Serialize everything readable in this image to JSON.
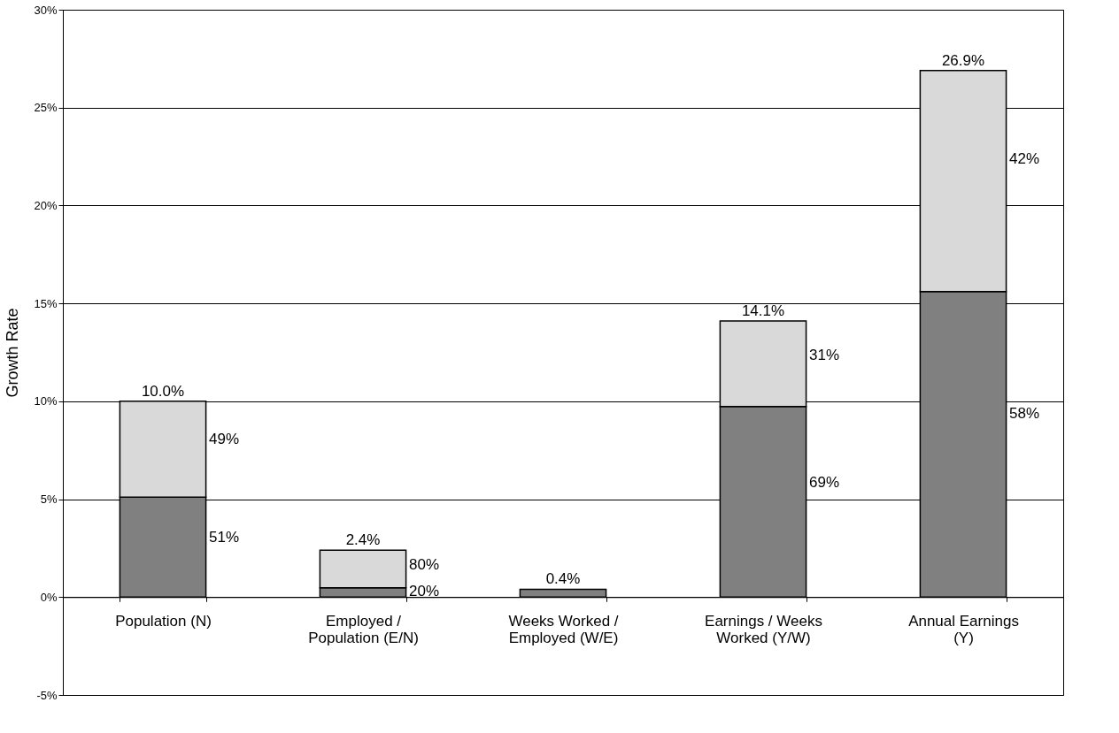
{
  "chart_data": {
    "type": "bar",
    "stacked": true,
    "ylabel": "Growth Rate",
    "categories": [
      "Population (N)",
      "Employed / Population (E/N)",
      "Weeks Worked / Employed (W/E)",
      "Earnings / Weeks Worked (Y/W)",
      "Annual Earnings (Y)"
    ],
    "series": [
      {
        "color": "#808080",
        "values": [
          5.1,
          0.48,
          0.4,
          9.73,
          15.6
        ]
      },
      {
        "color": "#d9d9d9",
        "values": [
          4.9,
          1.92,
          null,
          4.37,
          11.3
        ]
      }
    ],
    "annotations": [
      "51%",
      "49%",
      "20%",
      "80%",
      "69%",
      "31%",
      "58%",
      "42%"
    ],
    "totals": [
      "10.0%",
      "2.4%",
      "0.4%",
      "14.1%",
      "26.9%"
    ],
    "ylim": [
      -5,
      30
    ],
    "yticks": [
      {
        "value": -5,
        "label": "-5%"
      },
      {
        "value": 0,
        "label": "0%"
      },
      {
        "value": 5,
        "label": "5%"
      },
      {
        "value": 10,
        "label": "10%"
      },
      {
        "value": 15,
        "label": "15%"
      },
      {
        "value": 20,
        "label": "20%"
      },
      {
        "value": 25,
        "label": "25%"
      },
      {
        "value": 30,
        "label": "30%"
      }
    ],
    "grid": "y",
    "legend": false
  }
}
